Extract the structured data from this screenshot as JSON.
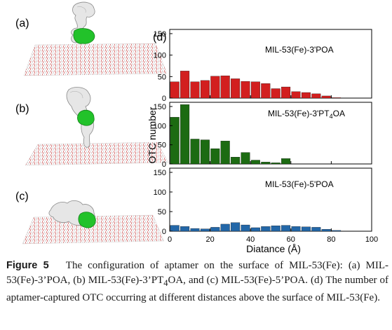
{
  "panels": {
    "a": "(a)",
    "b": "(b)",
    "c": "(c)",
    "d": "(d)"
  },
  "colors": {
    "red": "#d21f1f",
    "green": "#1c6b12",
    "blue": "#2367a8",
    "aptamer_white": "#e6e6e6",
    "binding_green": "#22c22a",
    "surface_red": "#c74545"
  },
  "chart_data": [
    {
      "type": "bar",
      "title": "MIL-53(Fe)-3'POA",
      "x": [
        2.5,
        7.5,
        12.5,
        17.5,
        22.5,
        27.5,
        32.5,
        37.5,
        42.5,
        47.5,
        52.5,
        57.5,
        62.5,
        67.5,
        72.5,
        77.5,
        82.5
      ],
      "values": [
        38,
        63,
        38,
        41,
        51,
        52,
        45,
        39,
        38,
        34,
        22,
        26,
        15,
        13,
        10,
        5,
        1
      ],
      "xlim": [
        0,
        100
      ],
      "ylim": [
        0,
        150
      ],
      "yticks": [
        0,
        50,
        100,
        150
      ],
      "color": "#d21f1f"
    },
    {
      "type": "bar",
      "title": "MIL-53(Fe)-3'PT",
      "title_sub": "4",
      "title_tail": "OA",
      "x": [
        2.5,
        7.5,
        12.5,
        17.5,
        22.5,
        27.5,
        32.5,
        37.5,
        42.5,
        47.5,
        52.5,
        57.5,
        62.5
      ],
      "values": [
        122,
        155,
        65,
        63,
        40,
        60,
        18,
        30,
        10,
        5,
        3,
        14,
        0
      ],
      "xlim": [
        0,
        100
      ],
      "ylim": [
        0,
        150
      ],
      "yticks": [
        0,
        50,
        100,
        150
      ],
      "color": "#1c6b12"
    },
    {
      "type": "bar",
      "title": "MIL-53(Fe)-5'POA",
      "x": [
        2.5,
        7.5,
        12.5,
        17.5,
        22.5,
        27.5,
        32.5,
        37.5,
        42.5,
        47.5,
        52.5,
        57.5,
        62.5,
        67.5,
        72.5,
        77.5,
        82.5
      ],
      "values": [
        15,
        12,
        7,
        6,
        10,
        18,
        22,
        16,
        9,
        12,
        14,
        15,
        12,
        11,
        10,
        5,
        2
      ],
      "xlim": [
        0,
        100
      ],
      "ylim": [
        0,
        150
      ],
      "yticks": [
        0,
        50,
        100,
        150
      ],
      "color": "#2367a8"
    }
  ],
  "axes": {
    "ylabel": "OTC number",
    "xlabel": "Diatance (Å)",
    "xticks": [
      0,
      20,
      40,
      60,
      80,
      100
    ]
  },
  "caption": {
    "label": "Figure 5",
    "text": "The configuration of aptamer on the surface of MIL-53(Fe): (a) MIL-53(Fe)-3’POA, (b) MIL-53(Fe)-3’PT",
    "sub": "4",
    "text2": "OA, and (c) MIL-53(Fe)-5’POA. (d) The number of aptamer-captured OTC occurring at different distances above the surface of MIL-53(Fe)."
  }
}
